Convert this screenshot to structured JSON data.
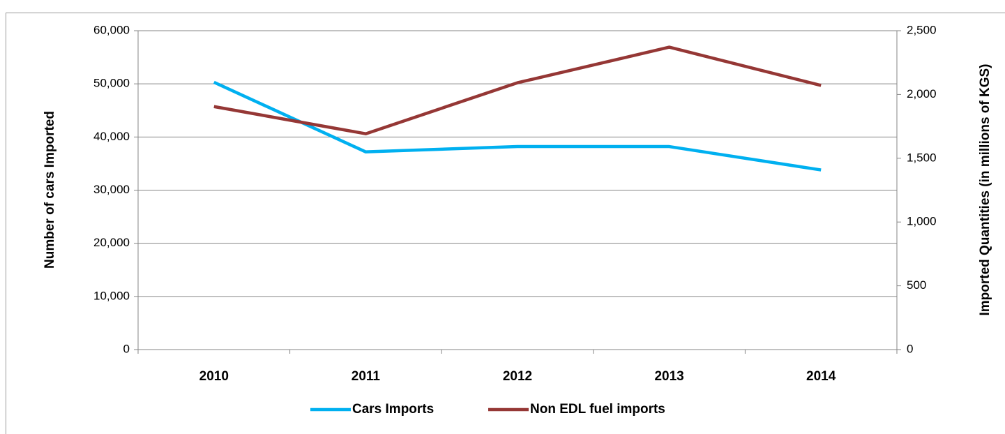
{
  "chart_data": {
    "type": "line",
    "y_label": "Number of cars Imported",
    "y2_label": "Imported Quantities (in millions of KGS)",
    "categories": [
      "2010",
      "2011",
      "2012",
      "2013",
      "2014"
    ],
    "series": [
      {
        "name": "Cars Imports",
        "color": "#00b0f0",
        "values": [
          50300,
          37200,
          38200,
          38200,
          33800
        ]
      },
      {
        "name": "Non EDL fuel imports",
        "color": "#953735",
        "axis": "y2",
        "values": [
          1905,
          1692,
          2092,
          2371,
          2071
        ]
      }
    ],
    "ylim": [
      0,
      60000
    ],
    "yticks": [
      0,
      {
        "value": 10000,
        "label": "10,000"
      },
      {
        "value": 20000,
        "label": "20,000"
      },
      {
        "value": 30000,
        "label": "30,000"
      },
      {
        "value": 40000,
        "label": "40,000"
      },
      {
        "value": 50000,
        "label": "50,000"
      },
      {
        "value": 60000,
        "label": "60,000"
      }
    ],
    "y2lim": [
      0,
      2500
    ],
    "y2ticks": [
      0,
      500,
      {
        "value": 1000,
        "label": "1,000"
      },
      {
        "value": 1500,
        "label": "1,500"
      },
      {
        "value": 2000,
        "label": "2,000"
      },
      {
        "value": 2500,
        "label": "2,500"
      }
    ],
    "grid": true,
    "legend": "bottom"
  }
}
